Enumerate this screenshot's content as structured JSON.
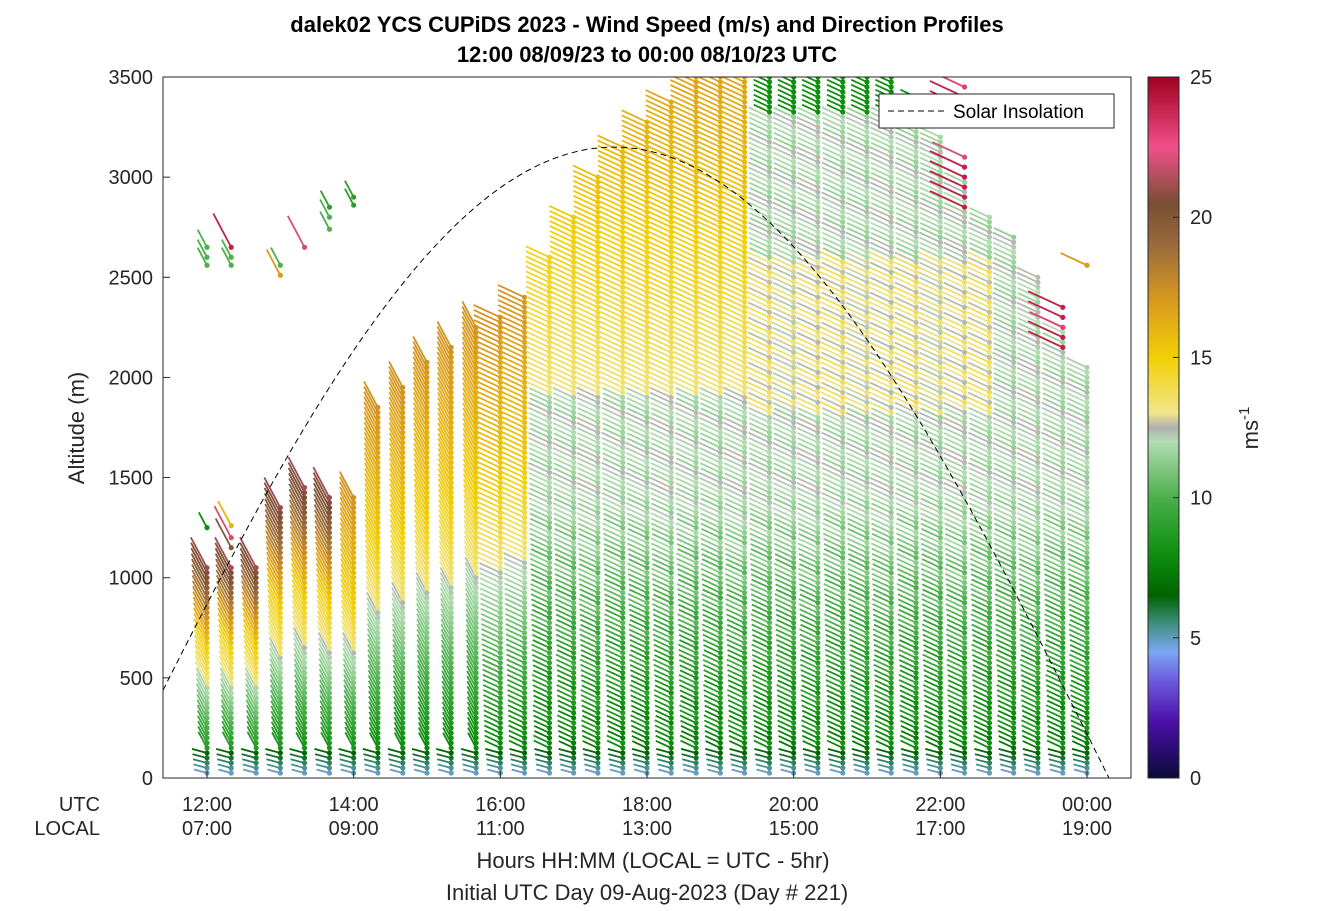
{
  "chart_data": {
    "type": "scatter",
    "title_line1": "dalek02 YCS CUPiDS 2023 - Wind Speed (m/s) and Direction Profiles",
    "title_line2": "12:00 08/09/23 to 00:00 08/10/23  UTC",
    "ylabel": "Altitude (m)",
    "xlabel_line1": "Hours HH:MM  (LOCAL = UTC - 5hr)",
    "xlabel_line2": "Initial UTC Day 09-Aug-2023 (Day # 221)",
    "ylim": [
      0,
      3500
    ],
    "xlim_hours_utc": [
      11.4,
      24.6
    ],
    "y_ticks": [
      0,
      500,
      1000,
      1500,
      2000,
      2500,
      3000,
      3500
    ],
    "x_row_labels": [
      "UTC",
      "LOCAL"
    ],
    "x_ticks": [
      {
        "hour": 12,
        "utc": "12:00",
        "local": "07:00"
      },
      {
        "hour": 14,
        "utc": "14:00",
        "local": "09:00"
      },
      {
        "hour": 16,
        "utc": "16:00",
        "local": "11:00"
      },
      {
        "hour": 18,
        "utc": "18:00",
        "local": "13:00"
      },
      {
        "hour": 20,
        "utc": "20:00",
        "local": "15:00"
      },
      {
        "hour": 22,
        "utc": "22:00",
        "local": "17:00"
      },
      {
        "hour": 24,
        "utc": "00:00",
        "local": "19:00"
      }
    ],
    "legend": {
      "entry": "Solar Insolation",
      "location": "top-right",
      "style": "dashed black"
    },
    "colorbar": {
      "label": "ms",
      "label_superscript": "-1",
      "range": [
        0,
        25
      ],
      "ticks": [
        0,
        5,
        10,
        15,
        20,
        25
      ],
      "stops": [
        {
          "v": 0,
          "c": "#0b0b3a"
        },
        {
          "v": 2,
          "c": "#4b0fa8"
        },
        {
          "v": 3.5,
          "c": "#6e5ce0"
        },
        {
          "v": 4.5,
          "c": "#7aa6f5"
        },
        {
          "v": 5.5,
          "c": "#3f8f80"
        },
        {
          "v": 6.5,
          "c": "#006400"
        },
        {
          "v": 8,
          "c": "#0f8f0f"
        },
        {
          "v": 10,
          "c": "#4caf4c"
        },
        {
          "v": 12,
          "c": "#b2dcb2"
        },
        {
          "v": 12.5,
          "c": "#b0b0b0"
        },
        {
          "v": 13,
          "c": "#f0e68c"
        },
        {
          "v": 15,
          "c": "#f2cf05"
        },
        {
          "v": 17,
          "c": "#d99a1e"
        },
        {
          "v": 19,
          "c": "#9a6b3c"
        },
        {
          "v": 20.5,
          "c": "#7a4e35"
        },
        {
          "v": 22.5,
          "c": "#f0508a"
        },
        {
          "v": 25,
          "c": "#a0001e"
        }
      ]
    },
    "solar_insolation": {
      "peak_hour_utc": 17.55,
      "peak_altitude_equiv": 3150,
      "zero_hour_utc": 24.3
    },
    "profiles": [
      {
        "t": 12.0,
        "top": 1050,
        "aloft": [
          [
            1250,
            8
          ],
          [
            2650,
            10
          ],
          [
            2600,
            10
          ],
          [
            2560,
            10
          ]
        ]
      },
      {
        "t": 12.33,
        "top": 1050,
        "aloft": [
          [
            1260,
            16
          ],
          [
            1200,
            22
          ],
          [
            1150,
            20
          ],
          [
            2650,
            24
          ],
          [
            2600,
            10
          ],
          [
            2560,
            10
          ]
        ]
      },
      {
        "t": 12.67,
        "top": 1050
      },
      {
        "t": 13.0,
        "top": 1360,
        "aloft": [
          [
            2560,
            10
          ],
          [
            2510,
            17
          ]
        ]
      },
      {
        "t": 13.33,
        "top": 1450,
        "aloft": [
          [
            2650,
            22
          ]
        ]
      },
      {
        "t": 13.67,
        "top": 1400,
        "aloft": [
          [
            2850,
            9
          ],
          [
            2800,
            10
          ],
          [
            2740,
            10
          ]
        ]
      },
      {
        "t": 14.0,
        "top": 1400,
        "aloft": [
          [
            2900,
            9
          ],
          [
            2860,
            9
          ]
        ]
      },
      {
        "t": 14.33,
        "top": 1850
      },
      {
        "t": 14.67,
        "top": 1950
      },
      {
        "t": 15.0,
        "top": 2080
      },
      {
        "t": 15.33,
        "top": 2150
      },
      {
        "t": 15.67,
        "top": 2250
      },
      {
        "t": 16.0,
        "top": 2300
      },
      {
        "t": 16.33,
        "top": 2420
      },
      {
        "t": 16.67,
        "top": 2620
      },
      {
        "t": 17.0,
        "top": 2800
      },
      {
        "t": 17.33,
        "top": 3000
      },
      {
        "t": 17.67,
        "top": 3150
      },
      {
        "t": 18.0,
        "top": 3280
      },
      {
        "t": 18.33,
        "top": 3380
      },
      {
        "t": 18.67,
        "top": 3500
      },
      {
        "t": 19.0,
        "top": 3500
      },
      {
        "t": 19.33,
        "top": 3500
      },
      {
        "t": 19.67,
        "top": 3500
      },
      {
        "t": 20.0,
        "top": 3500
      },
      {
        "t": 20.33,
        "top": 3500
      },
      {
        "t": 20.67,
        "top": 3500
      },
      {
        "t": 21.0,
        "top": 3500
      },
      {
        "t": 21.33,
        "top": 3500
      },
      {
        "t": 21.67,
        "top": 3400
      },
      {
        "t": 22.0,
        "top": 3200
      },
      {
        "t": 22.33,
        "top": 3000,
        "aloft": [
          [
            3100,
            22
          ],
          [
            3050,
            24
          ],
          [
            3000,
            24
          ],
          [
            2950,
            24
          ],
          [
            2900,
            24
          ],
          [
            2850,
            24
          ],
          [
            3450,
            23
          ],
          [
            3400,
            24
          ],
          [
            3350,
            24
          ]
        ]
      },
      {
        "t": 22.67,
        "top": 2800
      },
      {
        "t": 23.0,
        "top": 2700
      },
      {
        "t": 23.33,
        "top": 2500
      },
      {
        "t": 23.67,
        "top": 2250,
        "aloft": [
          [
            2350,
            24
          ],
          [
            2300,
            24
          ],
          [
            2250,
            23
          ],
          [
            2200,
            24
          ],
          [
            2150,
            24
          ]
        ]
      },
      {
        "t": 24.0,
        "top": 2050,
        "aloft": [
          [
            2560,
            17
          ]
        ]
      }
    ]
  }
}
